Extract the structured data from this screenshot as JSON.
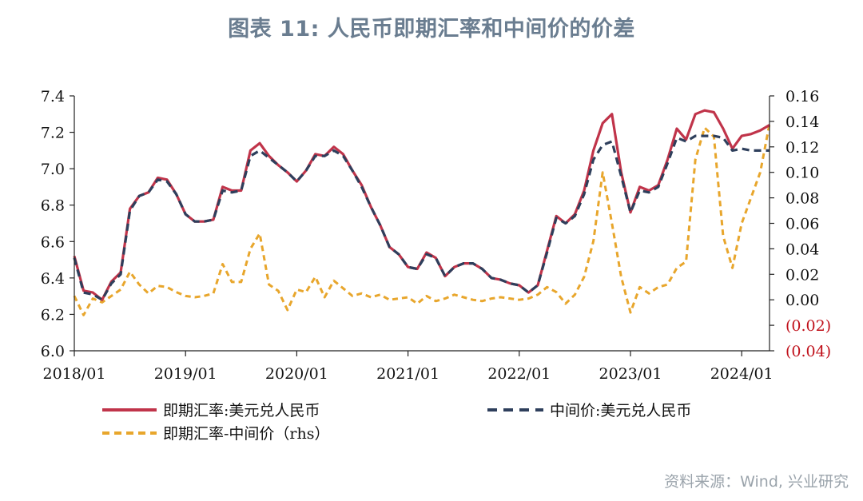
{
  "title": "图表 11: 人民币即期汇率和中间价的价差",
  "source": "资料来源：Wind, 兴业研究",
  "colors": {
    "spot": "#c0344a",
    "central": "#2e3f5c",
    "spread": "#e8a62c",
    "negative": "#c0101a"
  },
  "chart_data": {
    "type": "line",
    "title": "图表 11: 人民币即期汇率和中间价的价差",
    "x_ticks": [
      "2018/01",
      "2019/01",
      "2020/01",
      "2021/01",
      "2022/01",
      "2023/01",
      "2024/01"
    ],
    "x_range": [
      "2018/01",
      "2024/04"
    ],
    "y_left": {
      "range": [
        6.0,
        7.4
      ],
      "ticks": [
        "6.0",
        "6.2",
        "6.4",
        "6.6",
        "6.8",
        "7.0",
        "7.2",
        "7.4"
      ]
    },
    "y_right": {
      "range": [
        -0.04,
        0.16
      ],
      "ticks": [
        "(0.04)",
        "(0.02)",
        "0.00",
        "0.02",
        "0.04",
        "0.06",
        "0.08",
        "0.10",
        "0.12",
        "0.14",
        "0.16"
      ]
    },
    "grid": false,
    "legend_position": "bottom",
    "series": [
      {
        "name": "即期汇率:美元兑人民币",
        "axis": "left",
        "style": "solid",
        "x": [
          "2018/01",
          "2018/02",
          "2018/03",
          "2018/04",
          "2018/05",
          "2018/06",
          "2018/07",
          "2018/08",
          "2018/09",
          "2018/10",
          "2018/11",
          "2018/12",
          "2019/01",
          "2019/02",
          "2019/03",
          "2019/04",
          "2019/05",
          "2019/06",
          "2019/07",
          "2019/08",
          "2019/09",
          "2019/10",
          "2019/11",
          "2019/12",
          "2020/01",
          "2020/02",
          "2020/03",
          "2020/04",
          "2020/05",
          "2020/06",
          "2020/07",
          "2020/08",
          "2020/09",
          "2020/10",
          "2020/11",
          "2020/12",
          "2021/01",
          "2021/02",
          "2021/03",
          "2021/04",
          "2021/05",
          "2021/06",
          "2021/07",
          "2021/08",
          "2021/09",
          "2021/10",
          "2021/11",
          "2021/12",
          "2022/01",
          "2022/02",
          "2022/03",
          "2022/04",
          "2022/05",
          "2022/06",
          "2022/07",
          "2022/08",
          "2022/09",
          "2022/10",
          "2022/11",
          "2022/12",
          "2023/01",
          "2023/02",
          "2023/03",
          "2023/04",
          "2023/05",
          "2023/06",
          "2023/07",
          "2023/08",
          "2023/09",
          "2023/10",
          "2023/11",
          "2023/12",
          "2024/01",
          "2024/02",
          "2024/03",
          "2024/04"
        ],
        "values": [
          6.52,
          6.33,
          6.32,
          6.28,
          6.38,
          6.43,
          6.78,
          6.85,
          6.87,
          6.95,
          6.94,
          6.86,
          6.75,
          6.71,
          6.71,
          6.72,
          6.9,
          6.88,
          6.88,
          7.1,
          7.14,
          7.07,
          7.02,
          6.98,
          6.93,
          6.99,
          7.08,
          7.07,
          7.12,
          7.08,
          6.99,
          6.91,
          6.79,
          6.69,
          6.57,
          6.53,
          6.46,
          6.45,
          6.54,
          6.51,
          6.41,
          6.46,
          6.48,
          6.48,
          6.45,
          6.4,
          6.39,
          6.37,
          6.36,
          6.32,
          6.36,
          6.55,
          6.74,
          6.7,
          6.75,
          6.88,
          7.1,
          7.25,
          7.3,
          6.98,
          6.76,
          6.9,
          6.88,
          6.91,
          7.05,
          7.22,
          7.16,
          7.3,
          7.32,
          7.31,
          7.22,
          7.11,
          7.18,
          7.19,
          7.21,
          7.24
        ]
      },
      {
        "name": "中间价:美元兑人民币",
        "axis": "left",
        "style": "dashed",
        "x": [
          "2018/01",
          "2018/02",
          "2018/03",
          "2018/04",
          "2018/05",
          "2018/06",
          "2018/07",
          "2018/08",
          "2018/09",
          "2018/10",
          "2018/11",
          "2018/12",
          "2019/01",
          "2019/02",
          "2019/03",
          "2019/04",
          "2019/05",
          "2019/06",
          "2019/07",
          "2019/08",
          "2019/09",
          "2019/10",
          "2019/11",
          "2019/12",
          "2020/01",
          "2020/02",
          "2020/03",
          "2020/04",
          "2020/05",
          "2020/06",
          "2020/07",
          "2020/08",
          "2020/09",
          "2020/10",
          "2020/11",
          "2020/12",
          "2021/01",
          "2021/02",
          "2021/03",
          "2021/04",
          "2021/05",
          "2021/06",
          "2021/07",
          "2021/08",
          "2021/09",
          "2021/10",
          "2021/11",
          "2021/12",
          "2022/01",
          "2022/02",
          "2022/03",
          "2022/04",
          "2022/05",
          "2022/06",
          "2022/07",
          "2022/08",
          "2022/09",
          "2022/10",
          "2022/11",
          "2022/12",
          "2023/01",
          "2023/02",
          "2023/03",
          "2023/04",
          "2023/05",
          "2023/06",
          "2023/07",
          "2023/08",
          "2023/09",
          "2023/10",
          "2023/11",
          "2023/12",
          "2024/01",
          "2024/02",
          "2024/03",
          "2024/04"
        ],
        "values": [
          6.51,
          6.32,
          6.31,
          6.28,
          6.37,
          6.42,
          6.77,
          6.85,
          6.87,
          6.94,
          6.93,
          6.86,
          6.75,
          6.71,
          6.71,
          6.72,
          6.88,
          6.87,
          6.88,
          7.07,
          7.1,
          7.06,
          7.02,
          6.98,
          6.93,
          6.99,
          7.07,
          7.07,
          7.1,
          7.07,
          6.99,
          6.9,
          6.79,
          6.69,
          6.57,
          6.53,
          6.46,
          6.45,
          6.53,
          6.51,
          6.41,
          6.46,
          6.48,
          6.48,
          6.45,
          6.4,
          6.39,
          6.37,
          6.36,
          6.32,
          6.36,
          6.54,
          6.73,
          6.7,
          6.74,
          6.86,
          7.05,
          7.13,
          7.15,
          6.96,
          6.76,
          6.88,
          6.87,
          6.9,
          7.03,
          7.17,
          7.15,
          7.18,
          7.18,
          7.18,
          7.17,
          7.1,
          7.11,
          7.1,
          7.1,
          7.1
        ]
      },
      {
        "name": "即期汇率-中间价（rhs）",
        "axis": "right",
        "style": "dashed",
        "x": [
          "2018/01",
          "2018/02",
          "2018/03",
          "2018/04",
          "2018/05",
          "2018/06",
          "2018/07",
          "2018/08",
          "2018/09",
          "2018/10",
          "2018/11",
          "2018/12",
          "2019/01",
          "2019/02",
          "2019/03",
          "2019/04",
          "2019/05",
          "2019/06",
          "2019/07",
          "2019/08",
          "2019/09",
          "2019/10",
          "2019/11",
          "2019/12",
          "2020/01",
          "2020/02",
          "2020/03",
          "2020/04",
          "2020/05",
          "2020/06",
          "2020/07",
          "2020/08",
          "2020/09",
          "2020/10",
          "2020/11",
          "2020/12",
          "2021/01",
          "2021/02",
          "2021/03",
          "2021/04",
          "2021/05",
          "2021/06",
          "2021/07",
          "2021/08",
          "2021/09",
          "2021/10",
          "2021/11",
          "2021/12",
          "2022/01",
          "2022/02",
          "2022/03",
          "2022/04",
          "2022/05",
          "2022/06",
          "2022/07",
          "2022/08",
          "2022/09",
          "2022/10",
          "2022/11",
          "2022/12",
          "2023/01",
          "2023/02",
          "2023/03",
          "2023/04",
          "2023/05",
          "2023/06",
          "2023/07",
          "2023/08",
          "2023/09",
          "2023/10",
          "2023/11",
          "2023/12",
          "2024/01",
          "2024/02",
          "2024/03",
          "2024/04"
        ],
        "values": [
          0.003,
          -0.012,
          0.001,
          -0.002,
          0.003,
          0.008,
          0.022,
          0.012,
          0.005,
          0.011,
          0.01,
          0.006,
          0.003,
          0.002,
          0.003,
          0.005,
          0.028,
          0.014,
          0.014,
          0.04,
          0.052,
          0.012,
          0.007,
          -0.008,
          0.008,
          0.006,
          0.018,
          0.002,
          0.015,
          0.009,
          0.003,
          0.005,
          0.002,
          0.004,
          0.0,
          0.001,
          0.002,
          -0.003,
          0.003,
          -0.001,
          0.001,
          0.004,
          0.002,
          0.0,
          -0.001,
          0.001,
          0.002,
          0.001,
          0.0,
          0.001,
          0.004,
          0.01,
          0.006,
          -0.003,
          0.004,
          0.018,
          0.046,
          0.1,
          0.06,
          0.018,
          -0.01,
          0.01,
          0.005,
          0.01,
          0.012,
          0.025,
          0.03,
          0.11,
          0.135,
          0.128,
          0.05,
          0.025,
          0.06,
          0.08,
          0.1,
          0.138
        ]
      }
    ]
  },
  "legend": {
    "spot": "即期汇率:美元兑人民币",
    "central": "中间价:美元兑人民币",
    "spread": "即期汇率-中间价（rhs）"
  }
}
